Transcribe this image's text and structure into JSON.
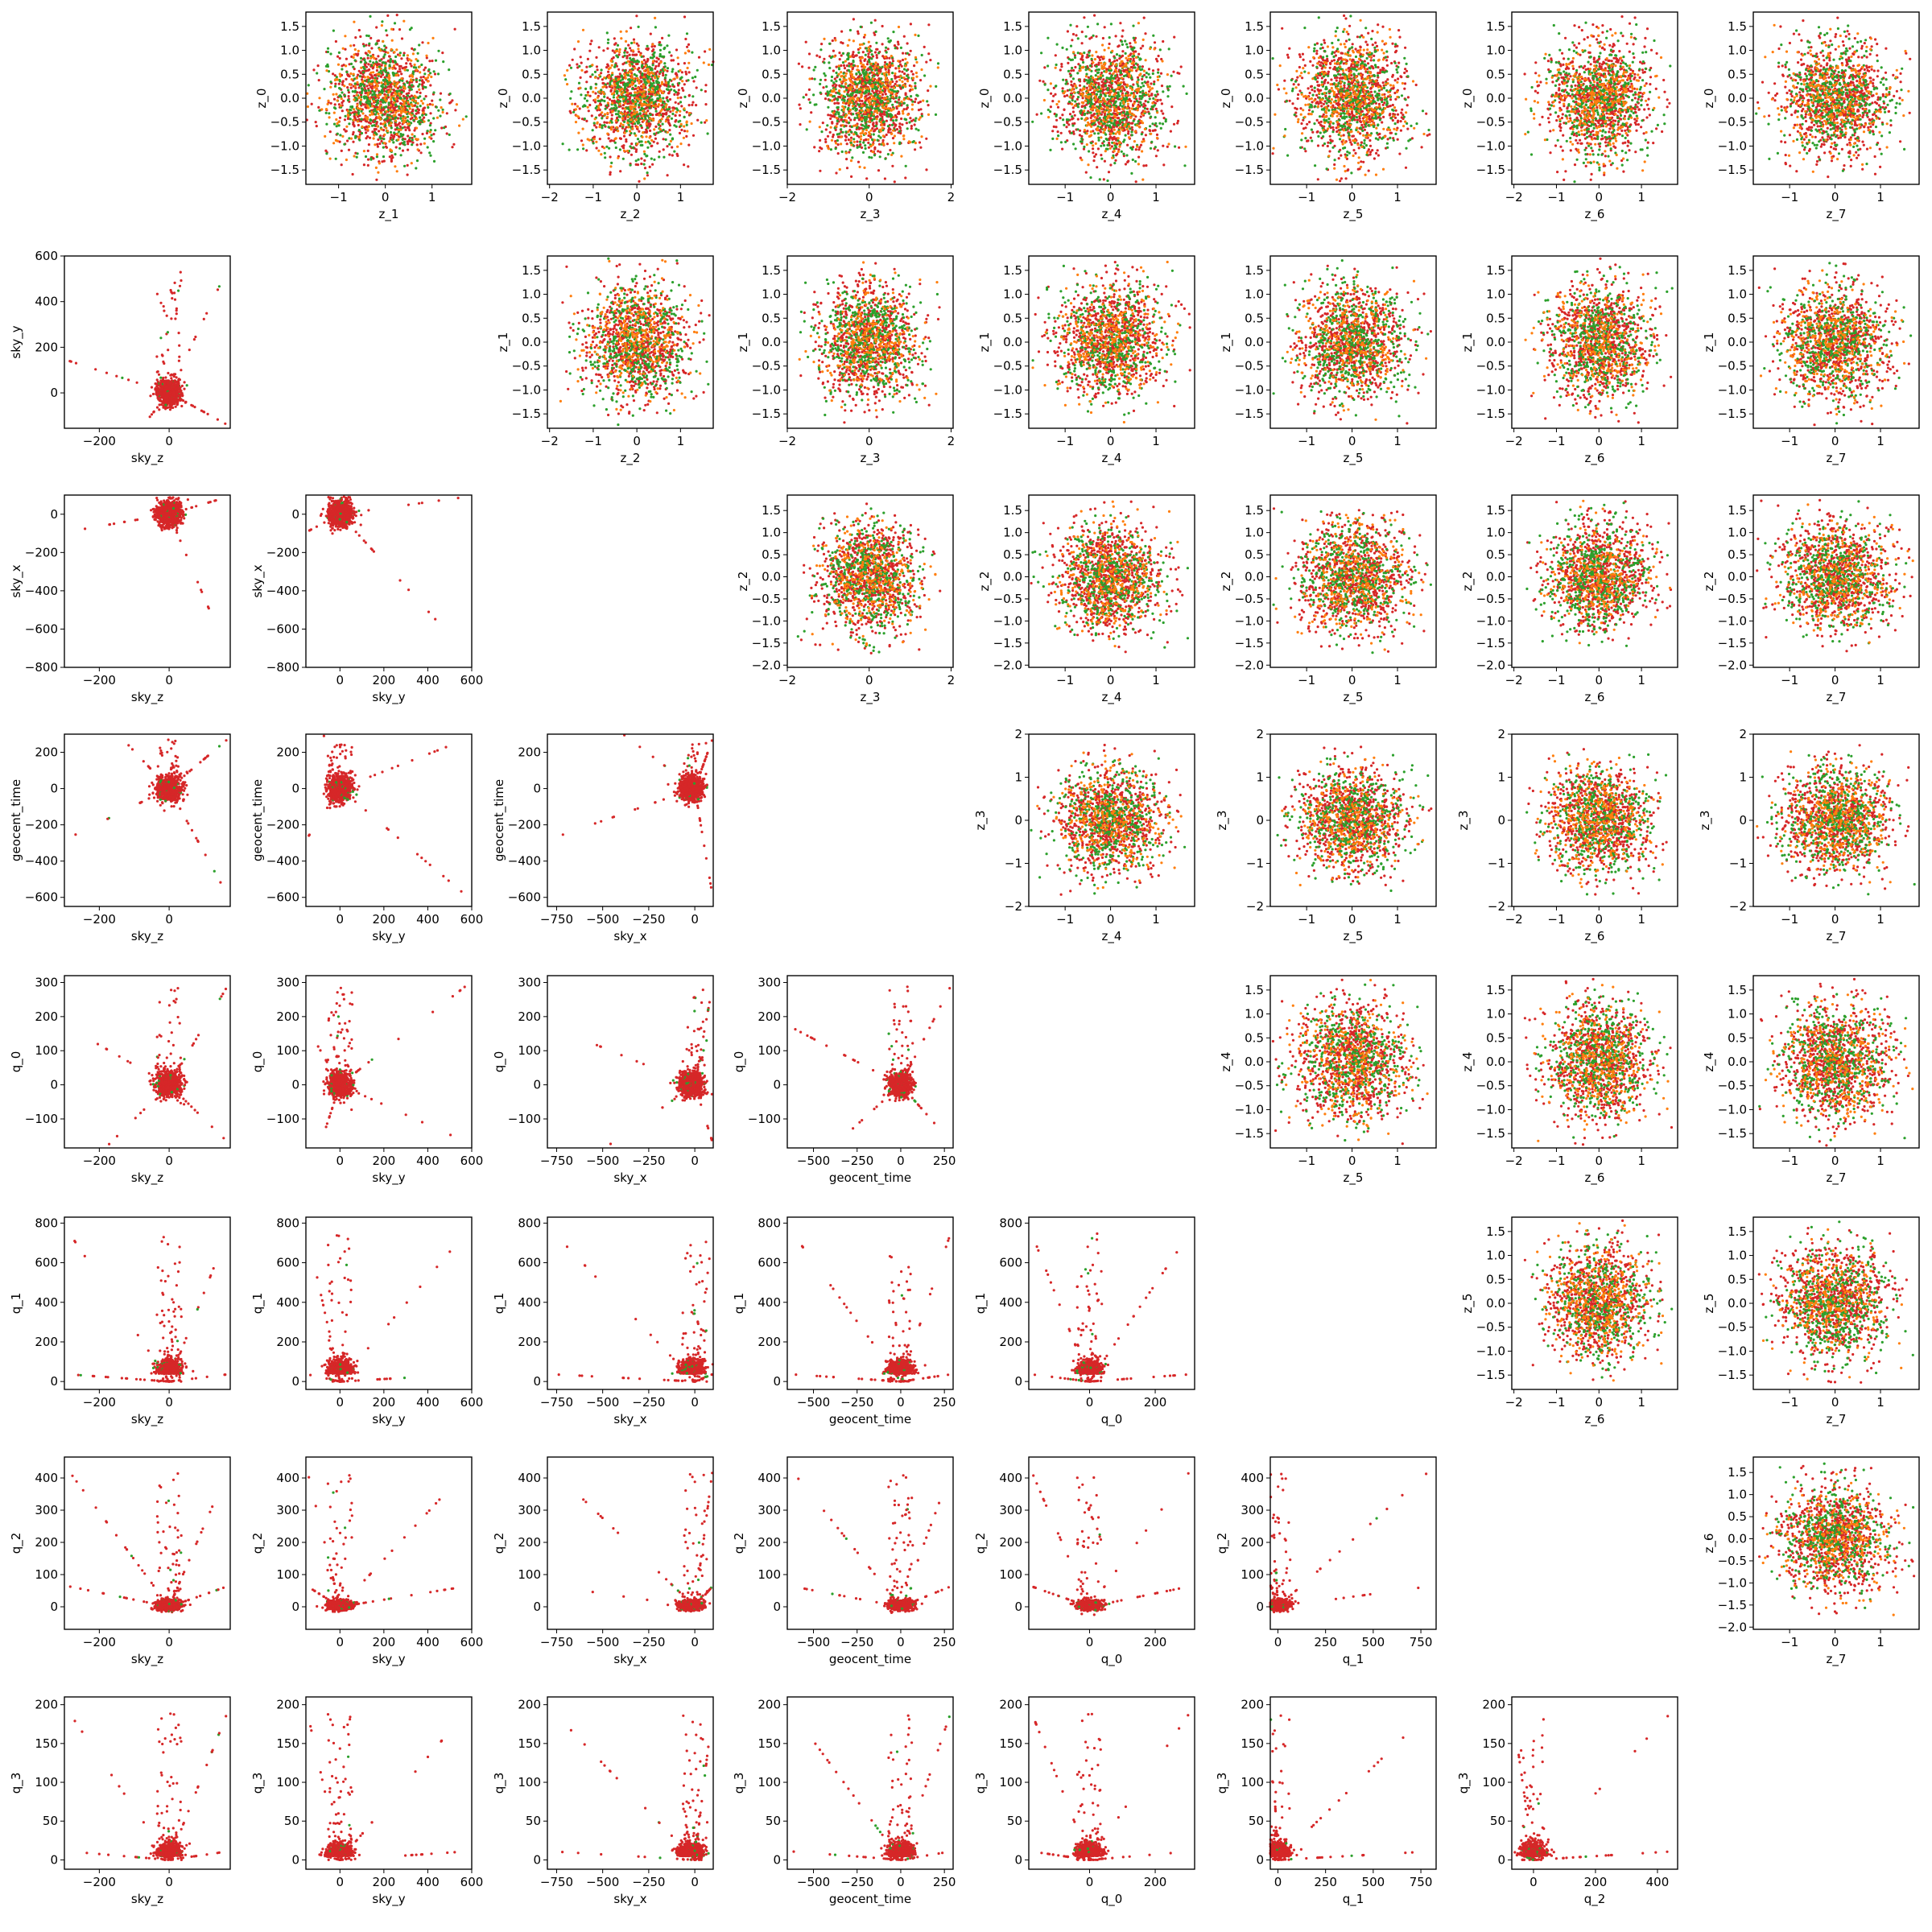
{
  "chart_data": {
    "type": "scatter",
    "layout": "corner-pair-plot",
    "grid": false,
    "legend": "none",
    "colors": {
      "reference": "#2ca02c",
      "samples_a": "#ff7f0e",
      "samples_b": "#d62728"
    },
    "latent_grid": {
      "rows": [
        "z_0",
        "z_1",
        "z_2",
        "z_3",
        "z_4",
        "z_5",
        "z_6"
      ],
      "cols": [
        "z_1",
        "z_2",
        "z_3",
        "z_4",
        "z_5",
        "z_6",
        "z_7"
      ],
      "ranges": {
        "z_0": [
          -1.8,
          1.8
        ],
        "z_1": [
          -1.8,
          1.8
        ],
        "z_2": [
          -2.05,
          1.85
        ],
        "z_3": [
          -2.0,
          2.0
        ],
        "z_4": [
          -1.8,
          1.8
        ],
        "z_5": [
          -1.8,
          1.8
        ],
        "z_6": [
          -2.05,
          1.85
        ],
        "z_7": [
          -1.8,
          1.8
        ]
      },
      "x_ranges": {
        "z_1": [
          -1.7,
          1.85
        ],
        "z_2": [
          -2.05,
          1.75
        ],
        "z_3": [
          -2.0,
          2.05
        ],
        "z_4": [
          -1.8,
          1.85
        ],
        "z_5": [
          -1.8,
          1.85
        ],
        "z_6": [
          -2.05,
          1.85
        ],
        "z_7": [
          -1.8,
          1.85
        ]
      },
      "ticks": {
        "z_0": [
          -1.5,
          -1.0,
          -0.5,
          0.0,
          0.5,
          1.0,
          1.5
        ],
        "z_1": [
          -1.5,
          -1.0,
          -0.5,
          0.0,
          0.5,
          1.0,
          1.5
        ],
        "z_2": [
          -2.0,
          -1.5,
          -1.0,
          -0.5,
          0.0,
          0.5,
          1.0,
          1.5
        ],
        "z_3": [
          -2,
          -1,
          0,
          1,
          2
        ],
        "z_4": [
          -1.5,
          -1.0,
          -0.5,
          0.0,
          0.5,
          1.0,
          1.5
        ],
        "z_5": [
          -1.5,
          -1.0,
          -0.5,
          0.0,
          0.5,
          1.0,
          1.5
        ],
        "z_6": [
          -2.0,
          -1.5,
          -1.0,
          -0.5,
          0.0,
          0.5,
          1.0,
          1.5
        ]
      },
      "x_ticks": {
        "z_1": [
          -1,
          0,
          1
        ],
        "z_2": [
          -2,
          -1,
          0,
          1
        ],
        "z_3": [
          -2,
          0,
          2
        ],
        "z_4": [
          -1,
          0,
          1
        ],
        "z_5": [
          -1,
          0,
          1
        ],
        "z_6": [
          -2,
          -1,
          0,
          1
        ],
        "z_7": [
          -1,
          0,
          1
        ]
      },
      "distribution": "standard-normal cloud, sd 0.6, clipped at 1.8"
    },
    "physical_grid": {
      "variables": [
        "sky_z",
        "sky_y",
        "sky_x",
        "geocent_time",
        "q_0",
        "q_1",
        "q_2",
        "q_3"
      ],
      "ranges": {
        "sky_z": [
          -300,
          175
        ],
        "sky_y": [
          -155,
          600
        ],
        "sky_x": [
          -800,
          100
        ],
        "geocent_time": [
          -650,
          300
        ],
        "q_0": [
          -185,
          320
        ],
        "q_1": [
          -40,
          830
        ],
        "q_2": [
          -70,
          465
        ],
        "q_3": [
          -12,
          210
        ]
      },
      "ticks": {
        "sky_z": [
          -200,
          0
        ],
        "sky_y": [
          0,
          200,
          400,
          600
        ],
        "sky_x": [
          -800,
          -600,
          -400,
          -200,
          0
        ],
        "geocent_time": [
          -600,
          -400,
          -200,
          0,
          200
        ],
        "q_0": [
          -100,
          0,
          100,
          200,
          300
        ],
        "q_1": [
          0,
          200,
          400,
          600,
          800
        ],
        "q_2": [
          0,
          100,
          200,
          300,
          400
        ],
        "q_3": [
          0,
          50,
          100,
          150,
          200
        ]
      },
      "x_ticks": {
        "sky_z": [
          -200,
          0
        ],
        "sky_y": [
          0,
          200,
          400,
          600
        ],
        "sky_x": [
          -750,
          -500,
          -250,
          0
        ],
        "geocent_time": [
          -500,
          -250,
          0,
          250
        ],
        "q_0": [
          0,
          200
        ],
        "q_1": [
          0,
          250,
          500,
          750
        ],
        "q_2": [
          0,
          200,
          400
        ]
      },
      "rows": [
        "sky_y",
        "sky_x",
        "geocent_time",
        "q_0",
        "q_1",
        "q_2",
        "q_3"
      ]
    }
  }
}
